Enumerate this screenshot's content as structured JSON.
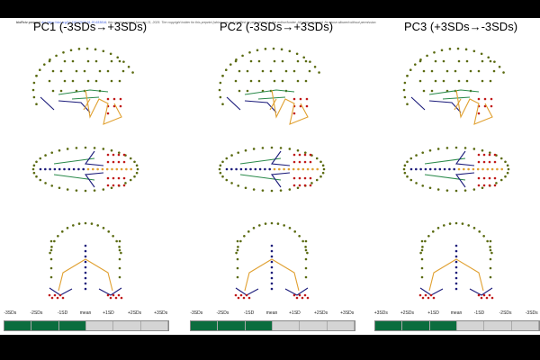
{
  "notice": {
    "prefix": "bioRxiv preprint",
    "link": "doi: https://doi.org/10.1101/2025.01.20.633816",
    "rest": "; this version posted January 21, 2025. The copyright holder for this preprint (which was not certified by peer review) is the author/funder. All rights reserved. No reuse allowed without permission."
  },
  "panels": [
    {
      "title": "PC1 (-3SDs→+3SDs)",
      "scale": [
        "-3SDs",
        "-2SDs",
        "-1SD",
        "mean",
        "+1SD",
        "+2SDs",
        "+3SDs"
      ],
      "fill_fraction": 0.5
    },
    {
      "title": "PC2 (-3SDs→+3SDs)",
      "scale": [
        "-3SDs",
        "-2SDs",
        "-1SD",
        "mean",
        "+1SD",
        "+2SDs",
        "+3SDs"
      ],
      "fill_fraction": 0.5
    },
    {
      "title": "PC3 (+3SDs→-3SDs)",
      "scale": [
        "+3SDs",
        "+2SDs",
        "+1SD",
        "mean",
        "-1SD",
        "-2SDs",
        "-3SDs"
      ],
      "fill_fraction": 0.5
    }
  ],
  "colors": {
    "olive": "#5a6a10",
    "blue": "#1a2a9a",
    "orange": "#e0a030",
    "green": "#2a8a4a",
    "red": "#c01818",
    "navy": "#1a1a7a",
    "fill": "#0b6d3e"
  }
}
